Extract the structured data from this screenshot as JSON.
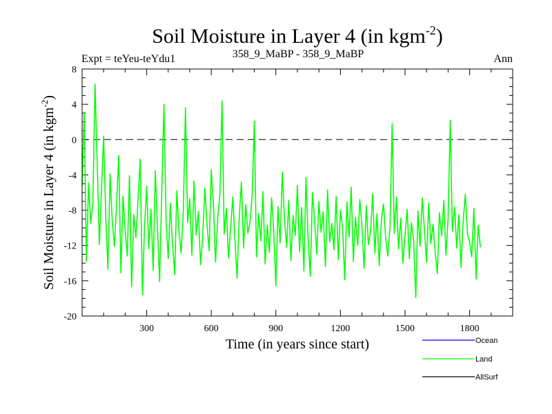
{
  "chart_data": {
    "type": "line",
    "title_main": "Soil Moisture in Layer 4 (in kgm",
    "title_sup": "-2",
    "title_close": ")",
    "subtitle_left": "Expt = teYeu-teYdu1",
    "subtitle_center": "358_9_MaBP - 358_9_MaBP",
    "subtitle_right": "Ann",
    "xlabel": "Time (in years since start)",
    "ylabel_main": "Soil Moisture in Layer 4 (in kgm",
    "ylabel_sup": "-2",
    "ylabel_close": ")",
    "xlim": [
      0,
      2000
    ],
    "ylim": [
      -20,
      8
    ],
    "x_ticks": [
      300,
      600,
      900,
      1200,
      1500,
      1800
    ],
    "x_tick_labels": [
      "300",
      "600",
      "900",
      "1200",
      "1500",
      "1800"
    ],
    "y_ticks": [
      -20,
      -16,
      -12,
      -8,
      -4,
      0,
      4,
      8
    ],
    "y_tick_labels": [
      "-20",
      "-16",
      "-12",
      "-8",
      "-4",
      "0",
      "4",
      "8"
    ],
    "reference_line": 0,
    "legend": [
      {
        "name": "Ocean",
        "color": "#0000ff"
      },
      {
        "name": "Land",
        "color": "#00ff00"
      },
      {
        "name": "AllSurf",
        "color": "#000000"
      }
    ],
    "series": [
      {
        "name": "Land",
        "color": "#00ff00",
        "x_start": 0,
        "x_step": 10,
        "values": [
          -5.2,
          3.1,
          -13.8,
          -4.9,
          -9.5,
          -7.1,
          6.3,
          -2.4,
          -11.9,
          -5.6,
          0.4,
          -8.8,
          -14.7,
          -3.9,
          -9.2,
          -12.1,
          -7.5,
          -1.8,
          -15.1,
          -6.4,
          -10.3,
          -13.2,
          -4.1,
          -16.7,
          -8.5,
          -11.1,
          -6.8,
          -2.2,
          -17.6,
          -9.8,
          -5.3,
          -12.4,
          -7.9,
          -14.8,
          -3.5,
          -10.1,
          -16.1,
          -6.1,
          4.0,
          -9.1,
          -13.5,
          -7.2,
          -11.8,
          -15.3,
          -5.8,
          -10.4,
          -12.9,
          -8.3,
          3.6,
          -9.4,
          -6.7,
          -13.1,
          -4.7,
          -10.8,
          -8.1,
          -14.2,
          -11.2,
          -5.5,
          -9.6,
          -12.6,
          -3.4,
          -7.3,
          -13.9,
          -8.9,
          -6.2,
          4.4,
          -10.7,
          -7.8,
          -13.4,
          -9.9,
          -6.5,
          -11.4,
          -15.7,
          -8.7,
          -4.8,
          -12.3,
          -7.4,
          -10.6,
          -9.3,
          -6.3,
          2.1,
          -13.3,
          -8.4,
          -11.5,
          -5.9,
          -14.1,
          -9.7,
          -12.8,
          -6.6,
          -10.2,
          -16.6,
          -7.6,
          -11.7,
          -3.7,
          -9.0,
          -12.2,
          -6.9,
          -13.7,
          -8.6,
          -10.9,
          -5.2,
          -12.7,
          -7.7,
          -14.9,
          -4.3,
          -11.3,
          -15.5,
          -6.0,
          -9.2,
          -13.0,
          -7.0,
          -10.5,
          -8.2,
          -14.4,
          -5.7,
          -11.6,
          -9.5,
          -12.5,
          -6.4,
          -13.6,
          -8.0,
          -10.0,
          -15.9,
          -7.1,
          -11.0,
          -5.4,
          -13.8,
          -8.8,
          -12.0,
          -6.8,
          -9.8,
          -14.6,
          -7.5,
          -11.9,
          -10.3,
          -6.1,
          -12.9,
          -8.4,
          -14.3,
          -9.1,
          -7.3,
          -11.1,
          -13.2,
          -9.9,
          1.8,
          -10.6,
          -6.5,
          -12.4,
          -8.9,
          -14.0,
          -10.8,
          -7.9,
          -13.5,
          -9.4,
          -11.5,
          -17.9,
          -8.1,
          -12.1,
          -6.6,
          -10.2,
          -13.9,
          -7.2,
          -11.8,
          -9.6,
          -12.7,
          -15.2,
          -8.3,
          -10.9,
          -6.9,
          -13.1,
          -9.0,
          2.2,
          -10.4,
          -7.6,
          -12.3,
          -8.5,
          -14.5,
          -9.3,
          -6.2,
          -10.7,
          -11.6,
          -13.3,
          -7.8,
          -15.8,
          -9.7,
          -12.2
        ]
      }
    ]
  }
}
